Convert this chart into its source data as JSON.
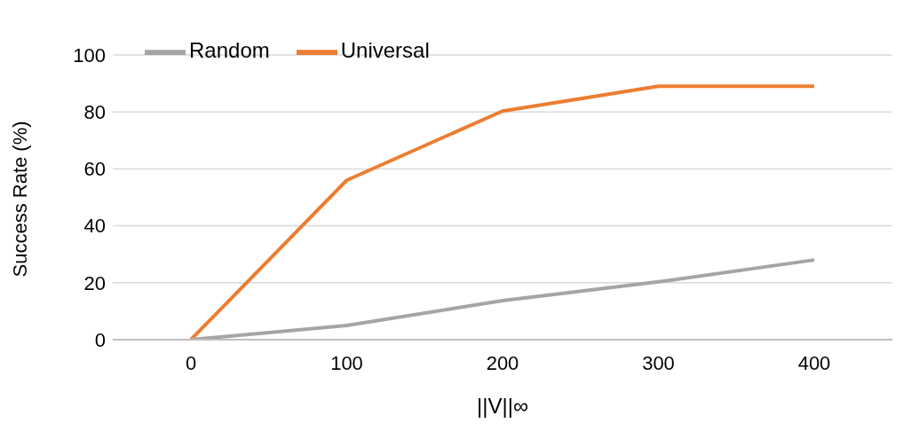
{
  "chart_data": {
    "type": "line",
    "xlabel": "||V||∞",
    "ylabel": "Success Rate (%)",
    "categories": [
      "0",
      "100",
      "200",
      "300",
      "400"
    ],
    "series": [
      {
        "name": "Universal",
        "color": "#ed7d31",
        "values": [
          0,
          56,
          80.3,
          89,
          89
        ]
      },
      {
        "name": "Random",
        "color": "#a5a5a5",
        "values": [
          0,
          5,
          13.7,
          20.3,
          28
        ]
      }
    ],
    "ylim": [
      0,
      100
    ],
    "yticks": [
      0,
      20,
      40,
      60,
      80,
      100
    ],
    "grid": "y",
    "legend": "top left",
    "marker": "none",
    "line_style": "solid"
  }
}
